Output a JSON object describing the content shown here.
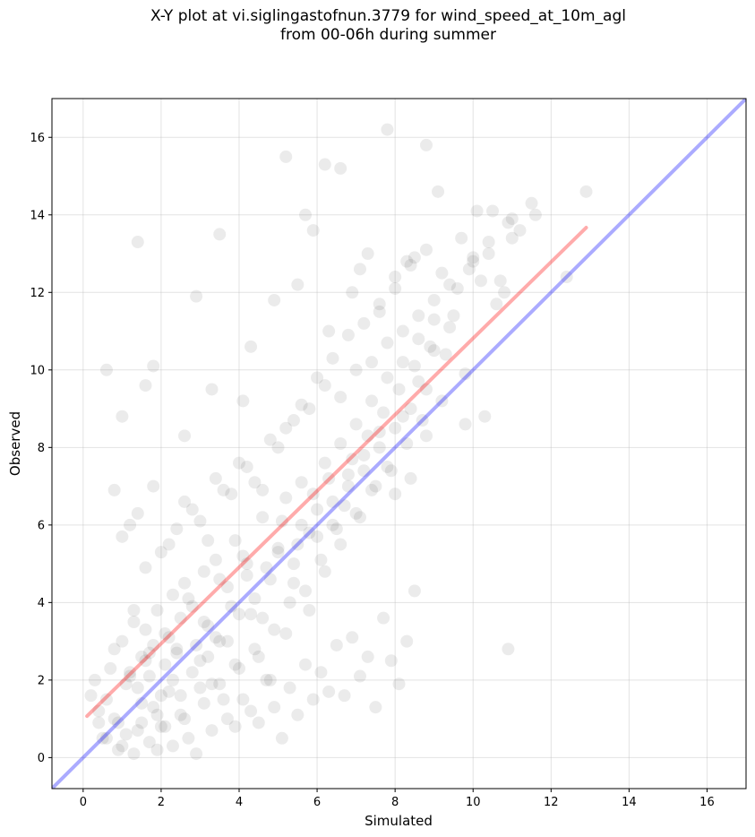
{
  "chart_data": {
    "type": "scatter",
    "title": "X-Y plot at vi.siglingastofnun.3779 for wind_speed_at_10m_agl",
    "subtitle": "from 00-06h during summer",
    "xlabel": "Simulated",
    "ylabel": "Observed",
    "xlim": [
      -0.8,
      17.0
    ],
    "ylim": [
      -0.8,
      17.0
    ],
    "xticks": [
      0,
      2,
      4,
      6,
      8,
      10,
      12,
      14,
      16
    ],
    "yticks": [
      0,
      2,
      4,
      6,
      8,
      10,
      12,
      14,
      16
    ],
    "grid": true,
    "point_color": "#000000",
    "point_alpha": 0.08,
    "lines": [
      {
        "role": "fit",
        "color": "#ff0000",
        "x": [
          0.1,
          12.9
        ],
        "y": [
          1.07,
          13.67
        ]
      },
      {
        "role": "identity",
        "color": "#0000ff",
        "x": [
          -0.8,
          17.0
        ],
        "y": [
          -0.8,
          17.0
        ]
      }
    ],
    "x": [
      0.3,
      0.6,
      0.8,
      1.0,
      1.2,
      1.3,
      1.4,
      1.5,
      1.6,
      1.7,
      1.8,
      1.9,
      2.0,
      2.1,
      2.2,
      2.3,
      2.4,
      2.5,
      2.6,
      2.8,
      3.0,
      3.1,
      3.2,
      3.4,
      3.5,
      3.7,
      3.9,
      4.0,
      4.2,
      4.4,
      4.6,
      4.8,
      5.0,
      5.2,
      5.4,
      5.6,
      5.8,
      6.0,
      6.2,
      6.4,
      6.6,
      6.8,
      7.0,
      7.2,
      7.4,
      7.6,
      7.8,
      8.0,
      8.2,
      8.4,
      8.6,
      8.8,
      9.0,
      9.3,
      9.6,
      10.0,
      10.4,
      10.8,
      11.2,
      11.6,
      12.4,
      12.9,
      0.4,
      0.7,
      0.9,
      1.1,
      1.3,
      1.5,
      1.7,
      1.9,
      2.1,
      2.3,
      2.5,
      2.7,
      2.9,
      3.1,
      3.3,
      3.5,
      3.7,
      3.9,
      4.1,
      4.3,
      4.5,
      4.7,
      4.9,
      5.1,
      5.3,
      5.5,
      5.7,
      5.9,
      6.1,
      6.3,
      6.5,
      6.7,
      6.9,
      7.1,
      7.3,
      7.5,
      7.7,
      7.9,
      8.1,
      8.3,
      8.5,
      8.7,
      8.9,
      9.2,
      9.5,
      9.8,
      10.2,
      10.6,
      11.0,
      0.5,
      0.8,
      1.0,
      1.2,
      1.4,
      1.6,
      1.8,
      2.0,
      2.2,
      2.4,
      2.6,
      2.8,
      3.0,
      3.2,
      3.4,
      3.6,
      3.8,
      4.0,
      4.2,
      4.4,
      4.6,
      4.8,
      5.0,
      5.2,
      5.4,
      5.6,
      5.8,
      6.0,
      6.2,
      6.4,
      6.6,
      6.8,
      7.0,
      7.2,
      7.4,
      7.6,
      7.8,
      8.0,
      8.2,
      8.4,
      8.6,
      8.8,
      9.0,
      9.4,
      9.8,
      10.3,
      10.9,
      1.4,
      2.9,
      3.5,
      5.2,
      5.7,
      6.2,
      6.6,
      7.8,
      8.8,
      9.1,
      10.1,
      11.5,
      0.6,
      1.0,
      1.8,
      4.1,
      4.9,
      5.9,
      6.9,
      7.3,
      8.0,
      8.5,
      9.7,
      10.5,
      10.9,
      0.8,
      1.6,
      2.6,
      3.3,
      4.3,
      5.5,
      6.3,
      7.1,
      7.6,
      8.3,
      9.2,
      10.0,
      10.7,
      0.2,
      0.4,
      0.6,
      0.9,
      1.1,
      1.3,
      1.5,
      1.7,
      1.9,
      2.1,
      2.3,
      2.5,
      2.7,
      2.9,
      3.1,
      3.3,
      3.5,
      3.7,
      3.9,
      4.1,
      4.3,
      4.5,
      4.7,
      4.9,
      5.1,
      5.3,
      5.5,
      5.7,
      5.9,
      6.1,
      6.3,
      6.5,
      6.7,
      6.9,
      7.1,
      7.3,
      7.5,
      7.7,
      7.9,
      8.1,
      8.3,
      8.5,
      1.0,
      1.4,
      1.8,
      2.2,
      2.6,
      3.0,
      3.4,
      3.8,
      4.2,
      4.6,
      5.0,
      5.4,
      5.8,
      6.2,
      6.6,
      7.0,
      7.4,
      7.8,
      8.2,
      8.6,
      9.0,
      9.4,
      9.9,
      10.4,
      11.0,
      1.2,
      1.6,
      2.0,
      2.4,
      2.8,
      3.2,
      3.6,
      4.0,
      4.4,
      4.8,
      5.2,
      5.6,
      6.0,
      6.4,
      6.8,
      7.2,
      7.6,
      8.0,
      8.4,
      8.8
    ],
    "y": [
      2.0,
      1.5,
      2.8,
      3.0,
      2.2,
      3.5,
      1.8,
      2.6,
      3.3,
      2.1,
      2.9,
      3.8,
      1.6,
      2.4,
      3.1,
      4.2,
      2.7,
      3.6,
      4.5,
      3.9,
      2.5,
      4.8,
      3.4,
      5.1,
      3.0,
      4.4,
      5.6,
      3.7,
      5.0,
      4.1,
      6.2,
      4.6,
      5.4,
      6.7,
      5.0,
      7.1,
      5.8,
      6.4,
      7.6,
      6.0,
      8.1,
      7.0,
      8.6,
      7.4,
      9.2,
      8.0,
      9.8,
      8.5,
      10.2,
      9.0,
      10.8,
      9.5,
      11.3,
      10.4,
      12.1,
      12.8,
      13.3,
      12.0,
      13.6,
      14.0,
      12.4,
      14.6,
      1.2,
      2.3,
      0.9,
      1.9,
      3.8,
      1.4,
      2.7,
      1.1,
      3.2,
      2.0,
      1.6,
      4.1,
      2.9,
      3.5,
      1.9,
      4.6,
      3.0,
      2.4,
      5.2,
      3.7,
      2.6,
      4.9,
      3.3,
      6.1,
      4.0,
      5.5,
      4.3,
      6.8,
      5.1,
      7.2,
      5.9,
      6.5,
      7.7,
      6.2,
      8.3,
      7.0,
      8.9,
      7.4,
      9.5,
      8.1,
      10.1,
      8.7,
      10.6,
      9.2,
      11.4,
      9.9,
      12.3,
      11.7,
      13.9,
      0.5,
      1.0,
      0.3,
      2.1,
      0.7,
      2.5,
      1.3,
      0.8,
      1.7,
      2.8,
      1.0,
      2.2,
      1.8,
      2.6,
      3.1,
      1.5,
      3.9,
      2.3,
      4.7,
      2.8,
      3.6,
      2.0,
      5.3,
      3.2,
      4.5,
      6.0,
      3.8,
      5.7,
      4.8,
      6.6,
      5.5,
      7.3,
      6.3,
      7.8,
      6.9,
      8.4,
      7.5,
      6.8,
      8.8,
      7.2,
      9.7,
      8.3,
      10.5,
      11.1,
      8.6,
      8.8,
      2.8,
      13.3,
      11.9,
      13.5,
      15.5,
      14.0,
      15.3,
      15.2,
      16.2,
      15.8,
      14.6,
      14.1,
      14.3,
      10.0,
      8.8,
      10.1,
      9.2,
      11.8,
      13.6,
      12.0,
      13.0,
      12.4,
      12.9,
      13.4,
      14.1,
      13.8,
      6.9,
      9.6,
      8.3,
      9.5,
      10.6,
      12.2,
      11.0,
      12.6,
      11.5,
      12.8,
      12.5,
      12.9,
      12.3,
      1.6,
      0.9,
      0.5,
      0.2,
      0.6,
      0.1,
      0.9,
      0.4,
      0.2,
      0.8,
      0.3,
      1.1,
      0.5,
      0.1,
      1.4,
      0.7,
      1.9,
      1.0,
      0.8,
      1.5,
      1.2,
      0.9,
      2.0,
      1.3,
      0.5,
      1.8,
      1.1,
      2.4,
      1.5,
      2.2,
      1.7,
      2.9,
      1.6,
      3.1,
      2.1,
      2.6,
      1.3,
      3.6,
      2.5,
      1.9,
      3.0,
      4.3,
      5.7,
      6.3,
      7.0,
      5.5,
      6.6,
      6.1,
      7.2,
      6.8,
      7.5,
      6.9,
      8.0,
      8.7,
      9.0,
      9.6,
      9.3,
      10.0,
      10.2,
      10.7,
      11.0,
      11.4,
      11.8,
      12.2,
      12.6,
      13.0,
      13.4,
      6.0,
      4.9,
      5.3,
      5.9,
      6.4,
      5.6,
      6.9,
      7.6,
      7.1,
      8.2,
      8.5,
      9.1,
      9.8,
      10.3,
      10.9,
      11.2,
      11.7,
      12.1,
      12.7,
      13.1
    ]
  }
}
